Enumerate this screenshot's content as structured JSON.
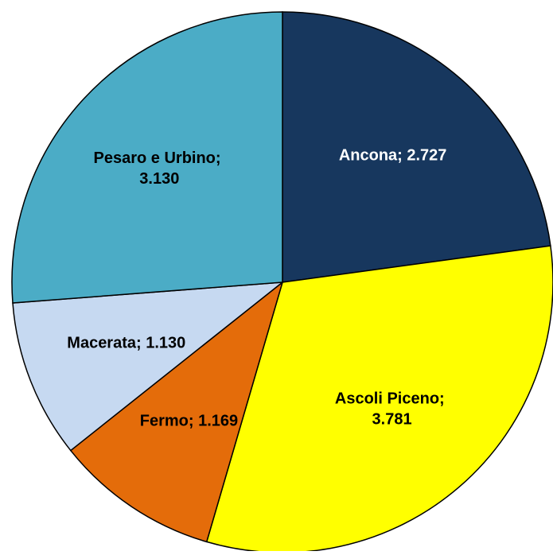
{
  "chart_data": {
    "type": "pie",
    "categories": [
      "Ancona",
      "Ascoli Piceno",
      "Fermo",
      "Macerata",
      "Pesaro e Urbino"
    ],
    "values": [
      2727,
      3781,
      1169,
      1130,
      3130
    ],
    "value_labels": [
      "Ancona; 2.727",
      "Ascoli Piceno; 3.781",
      "Fermo; 1.169",
      "Macerata; 1.130",
      "Pesaro e Urbino; 3.130"
    ],
    "colors": [
      "#17375e",
      "#ffff00",
      "#e46c0a",
      "#c6d9f1",
      "#4bacc6"
    ]
  }
}
